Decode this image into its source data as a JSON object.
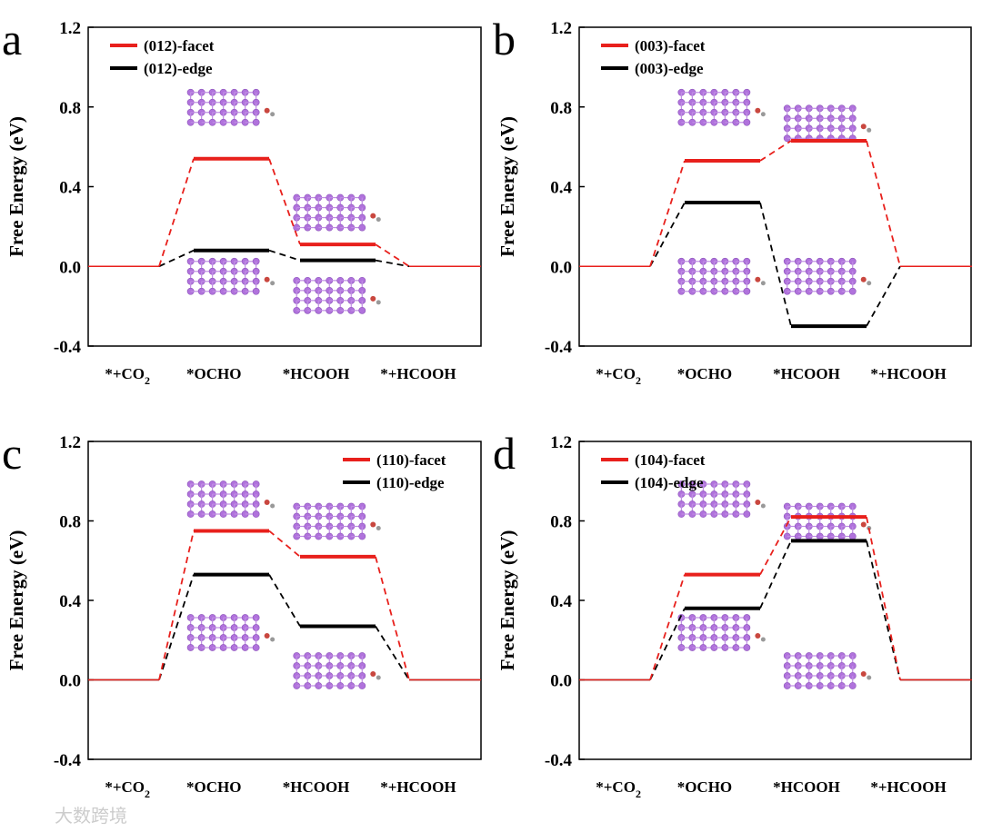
{
  "watermark": "大数跨境",
  "chart_data": [
    {
      "type": "line",
      "panel_label": "a",
      "ylabel": "Free Energy (eV)",
      "ylim": [
        -0.4,
        1.2
      ],
      "yticks": [
        "1.2",
        "0.8",
        "0.4",
        "0.0",
        "-0.4"
      ],
      "ytick_values": [
        1.2,
        0.8,
        0.4,
        0.0,
        -0.4
      ],
      "categories": [
        "*+CO2",
        "*OCHO",
        "*HCOOH",
        "*+HCOOH"
      ],
      "legend_position": "top-left",
      "series": [
        {
          "name": "(012)-facet",
          "color": "#e8201c",
          "values": [
            0.0,
            0.54,
            0.11,
            0.0
          ]
        },
        {
          "name": "(012)-edge",
          "color": "#000000",
          "values": [
            0.0,
            0.08,
            0.03,
            0.0
          ]
        }
      ]
    },
    {
      "type": "line",
      "panel_label": "b",
      "ylabel": "Free Energy (eV)",
      "ylim": [
        -0.4,
        1.2
      ],
      "yticks": [
        "1.2",
        "0.8",
        "0.4",
        "0.0",
        "-0.4"
      ],
      "ytick_values": [
        1.2,
        0.8,
        0.4,
        0.0,
        -0.4
      ],
      "categories": [
        "*+CO2",
        "*OCHO",
        "*HCOOH",
        "*+HCOOH"
      ],
      "legend_position": "top-left",
      "series": [
        {
          "name": "(003)-facet",
          "color": "#e8201c",
          "values": [
            0.0,
            0.53,
            0.63,
            0.0
          ]
        },
        {
          "name": "(003)-edge",
          "color": "#000000",
          "values": [
            0.0,
            0.32,
            -0.3,
            0.0
          ]
        }
      ]
    },
    {
      "type": "line",
      "panel_label": "c",
      "ylabel": "Free Energy (eV)",
      "ylim": [
        -0.4,
        1.2
      ],
      "yticks": [
        "1.2",
        "0.8",
        "0.4",
        "0.0",
        "-0.4"
      ],
      "ytick_values": [
        1.2,
        0.8,
        0.4,
        0.0,
        -0.4
      ],
      "categories": [
        "*+CO2",
        "*OCHO",
        "*HCOOH",
        "*+HCOOH"
      ],
      "legend_position": "top-right",
      "series": [
        {
          "name": "(110)-facet",
          "color": "#e8201c",
          "values": [
            0.0,
            0.75,
            0.62,
            0.0
          ]
        },
        {
          "name": "(110)-edge",
          "color": "#000000",
          "values": [
            0.0,
            0.53,
            0.27,
            0.0
          ]
        }
      ]
    },
    {
      "type": "line",
      "panel_label": "d",
      "ylabel": "Free Energy (eV)",
      "ylim": [
        -0.4,
        1.2
      ],
      "yticks": [
        "1.2",
        "0.8",
        "0.4",
        "0.0",
        "-0.4"
      ],
      "ytick_values": [
        1.2,
        0.8,
        0.4,
        0.0,
        -0.4
      ],
      "categories": [
        "*+CO2",
        "*OCHO",
        "*HCOOH",
        "*+HCOOH"
      ],
      "legend_position": "top-left",
      "series": [
        {
          "name": "(104)-facet",
          "color": "#e8201c",
          "values": [
            0.0,
            0.53,
            0.82,
            0.0
          ]
        },
        {
          "name": "(104)-edge",
          "color": "#000000",
          "values": [
            0.0,
            0.36,
            0.7,
            0.0
          ]
        }
      ]
    }
  ]
}
